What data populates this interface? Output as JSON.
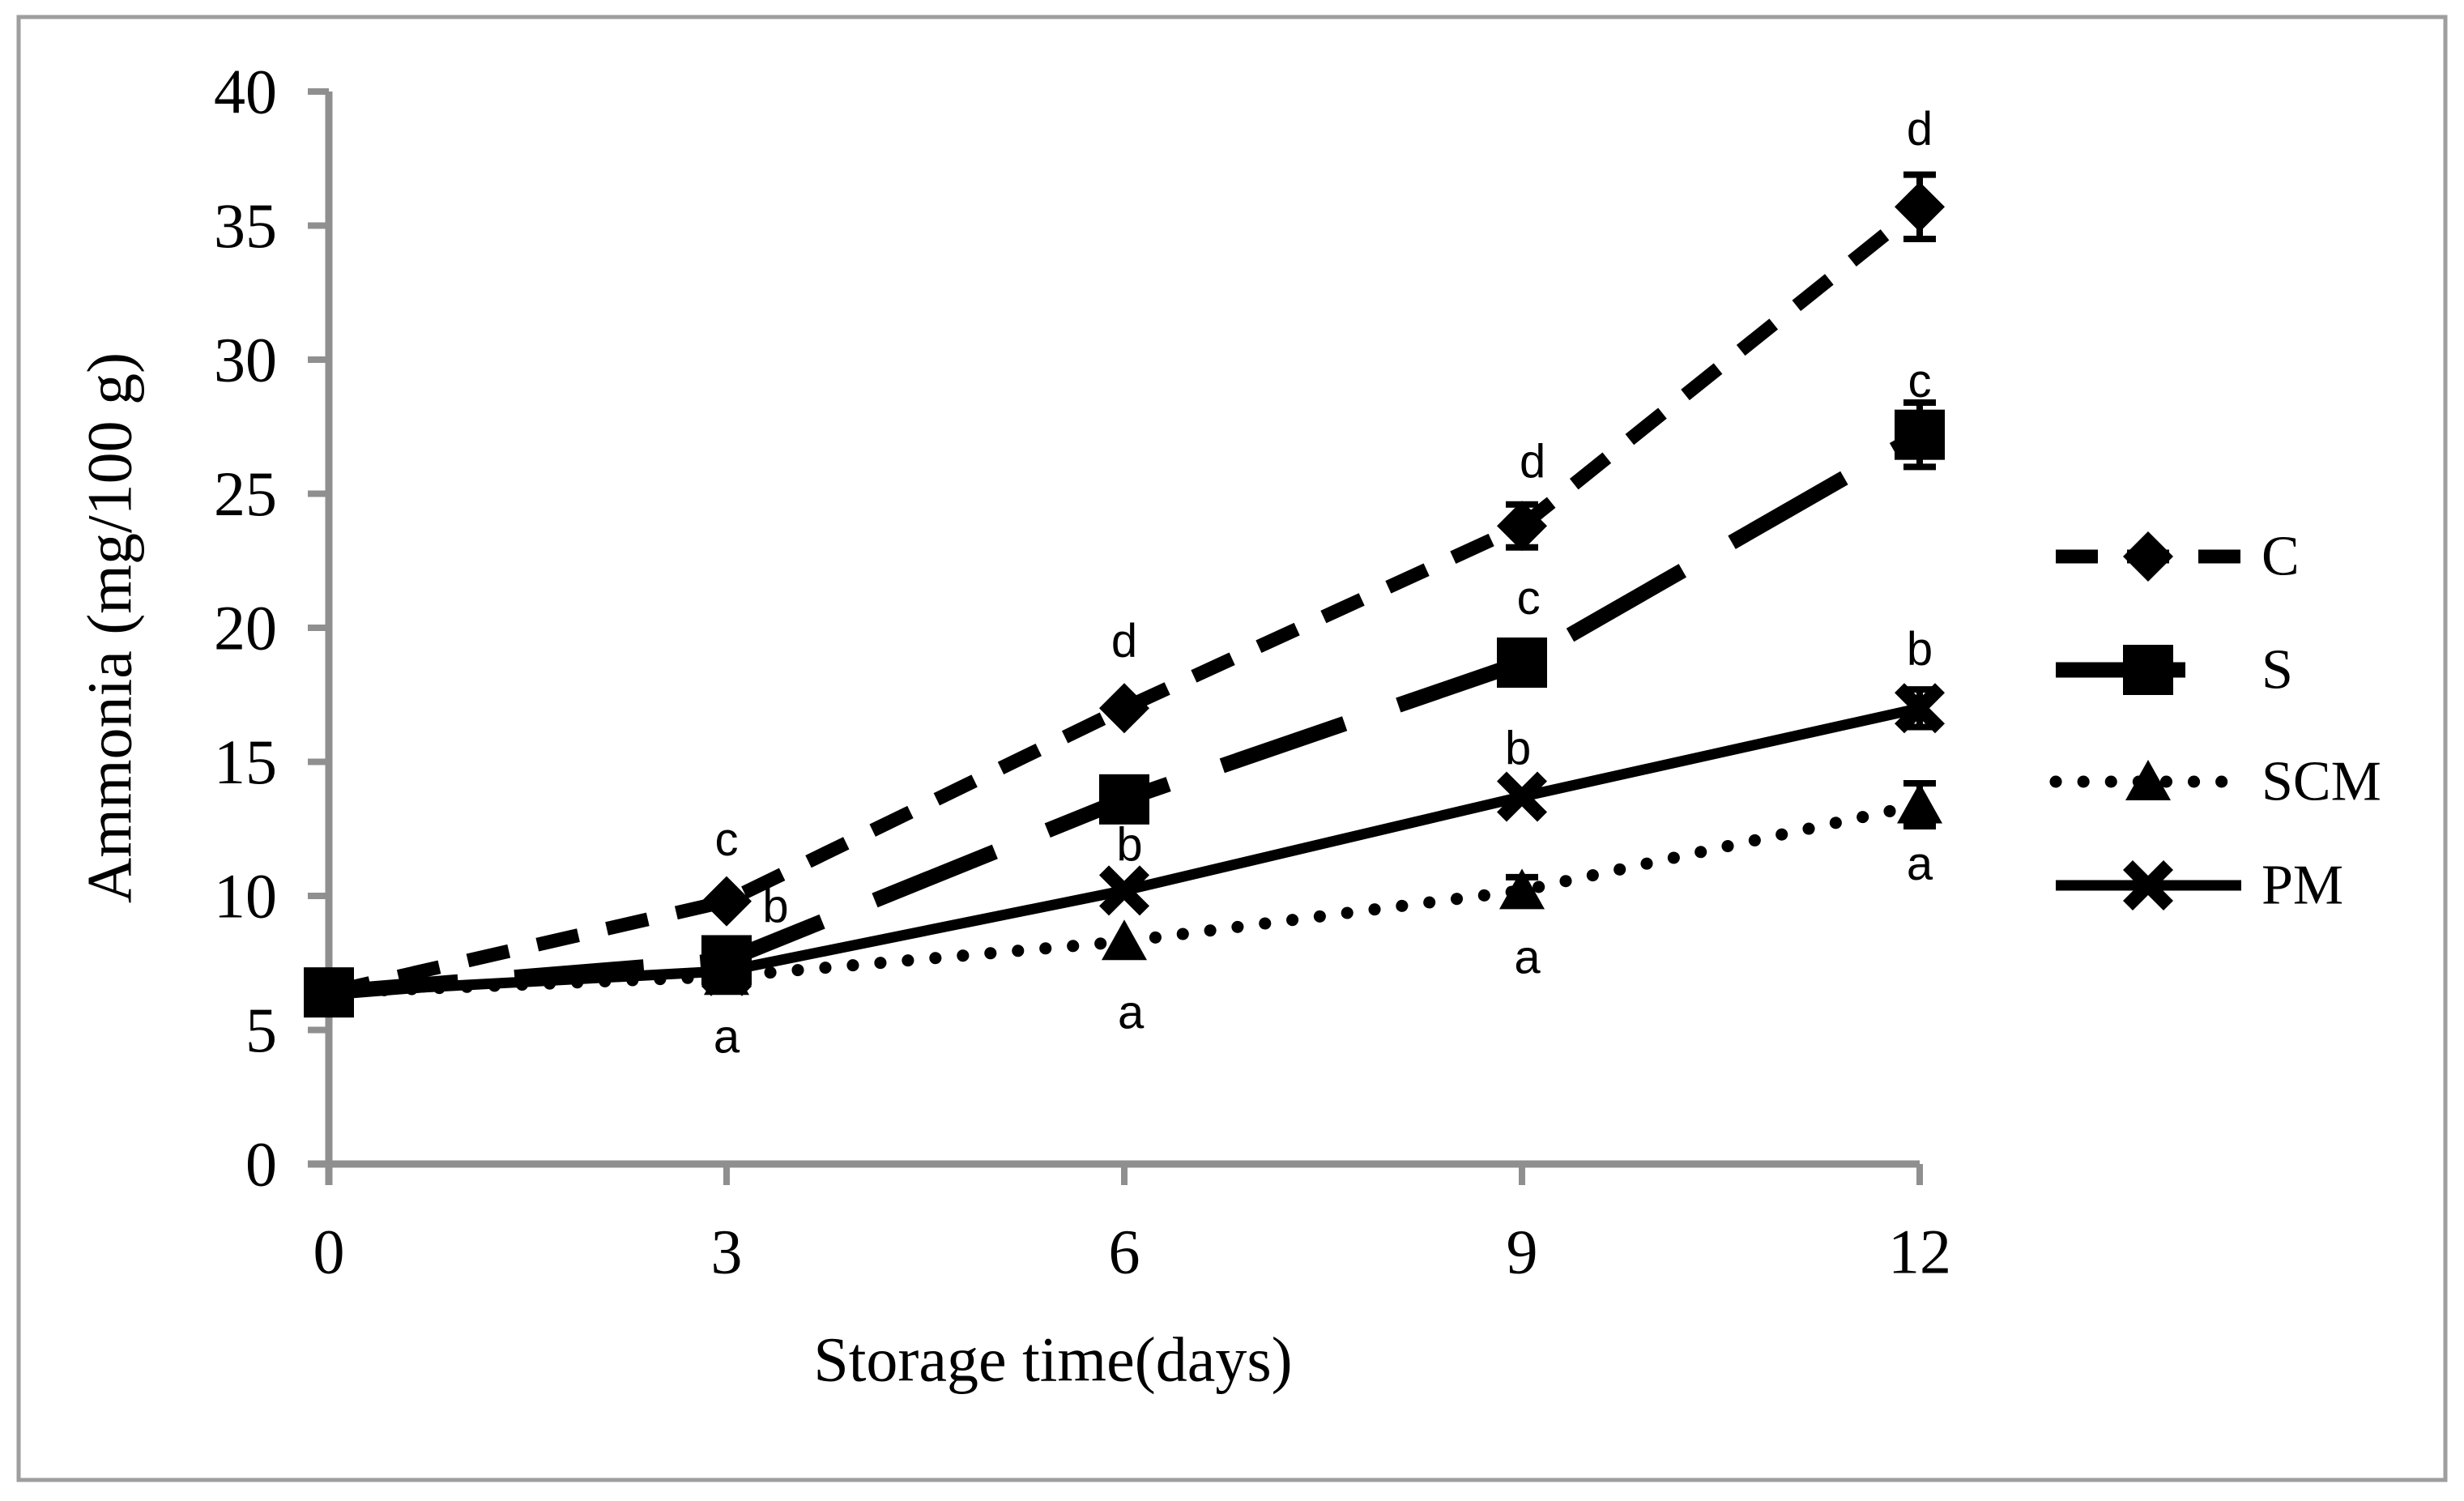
{
  "figure": {
    "background": "#ffffff",
    "border_color": "#9e9e9e",
    "axis_color": "#8f8f8f",
    "line_color": "#000000",
    "text_color": "#000000"
  },
  "chart_data": {
    "type": "line",
    "title": "",
    "xlabel": "Storage time(days)",
    "ylabel": "Ammonia (mg/100 g)",
    "x": [
      0,
      3,
      6,
      9,
      12
    ],
    "xticks": [
      0,
      3,
      6,
      9,
      12
    ],
    "yticks": [
      0,
      5,
      10,
      15,
      20,
      25,
      30,
      35,
      40
    ],
    "xlim": [
      0,
      12
    ],
    "ylim": [
      0,
      40
    ],
    "grid": false,
    "legend_position": "right",
    "series": [
      {
        "name": "C",
        "marker": "diamond",
        "line": "dashed",
        "values": [
          6.4,
          9.8,
          17.0,
          23.8,
          35.7
        ],
        "errors": [
          0,
          0,
          0,
          0.8,
          1.2
        ]
      },
      {
        "name": "S",
        "marker": "square",
        "line": "long-dash",
        "values": [
          6.4,
          7.6,
          13.6,
          18.7,
          27.2
        ],
        "errors": [
          0,
          0,
          0.8,
          0.8,
          1.2
        ]
      },
      {
        "name": "SCM",
        "marker": "triangle",
        "line": "dotted",
        "values": [
          6.4,
          7.0,
          8.3,
          10.2,
          13.4
        ],
        "errors": [
          0,
          0,
          0,
          0.5,
          0.8
        ]
      },
      {
        "name": "PM",
        "marker": "x",
        "line": "solid",
        "values": [
          6.4,
          7.2,
          10.2,
          13.7,
          17.0
        ],
        "errors": [
          0,
          0,
          0,
          0,
          0.7
        ]
      }
    ],
    "annotations": [
      {
        "x": 3.0,
        "y": 12.1,
        "text": "c"
      },
      {
        "x": 3.37,
        "y": 9.6,
        "text": "b"
      },
      {
        "x": 3.0,
        "y": 4.75,
        "text": "a"
      },
      {
        "x": 6.0,
        "y": 19.5,
        "text": "d"
      },
      {
        "x": 6.04,
        "y": 11.9,
        "text": "b"
      },
      {
        "x": 6.05,
        "y": 5.65,
        "text": "a"
      },
      {
        "x": 9.08,
        "y": 26.2,
        "text": "d"
      },
      {
        "x": 9.05,
        "y": 21.1,
        "text": "c"
      },
      {
        "x": 8.97,
        "y": 15.5,
        "text": "b"
      },
      {
        "x": 9.04,
        "y": 7.7,
        "text": "a"
      },
      {
        "x": 12.0,
        "y": 38.6,
        "text": "d"
      },
      {
        "x": 12.0,
        "y": 29.2,
        "text": "c"
      },
      {
        "x": 12.0,
        "y": 19.2,
        "text": "b"
      },
      {
        "x": 12.0,
        "y": 11.2,
        "text": "a"
      }
    ]
  }
}
